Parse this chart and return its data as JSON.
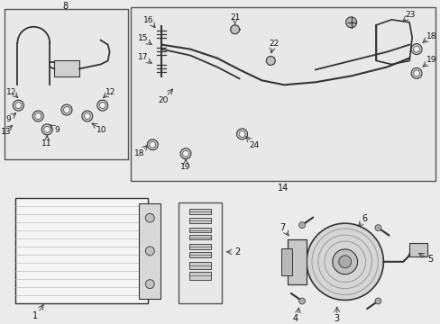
{
  "bg_color": "#ebebeb",
  "line_color": "#333333",
  "box_color": "#e8e8e8",
  "box_edge": "#555555"
}
